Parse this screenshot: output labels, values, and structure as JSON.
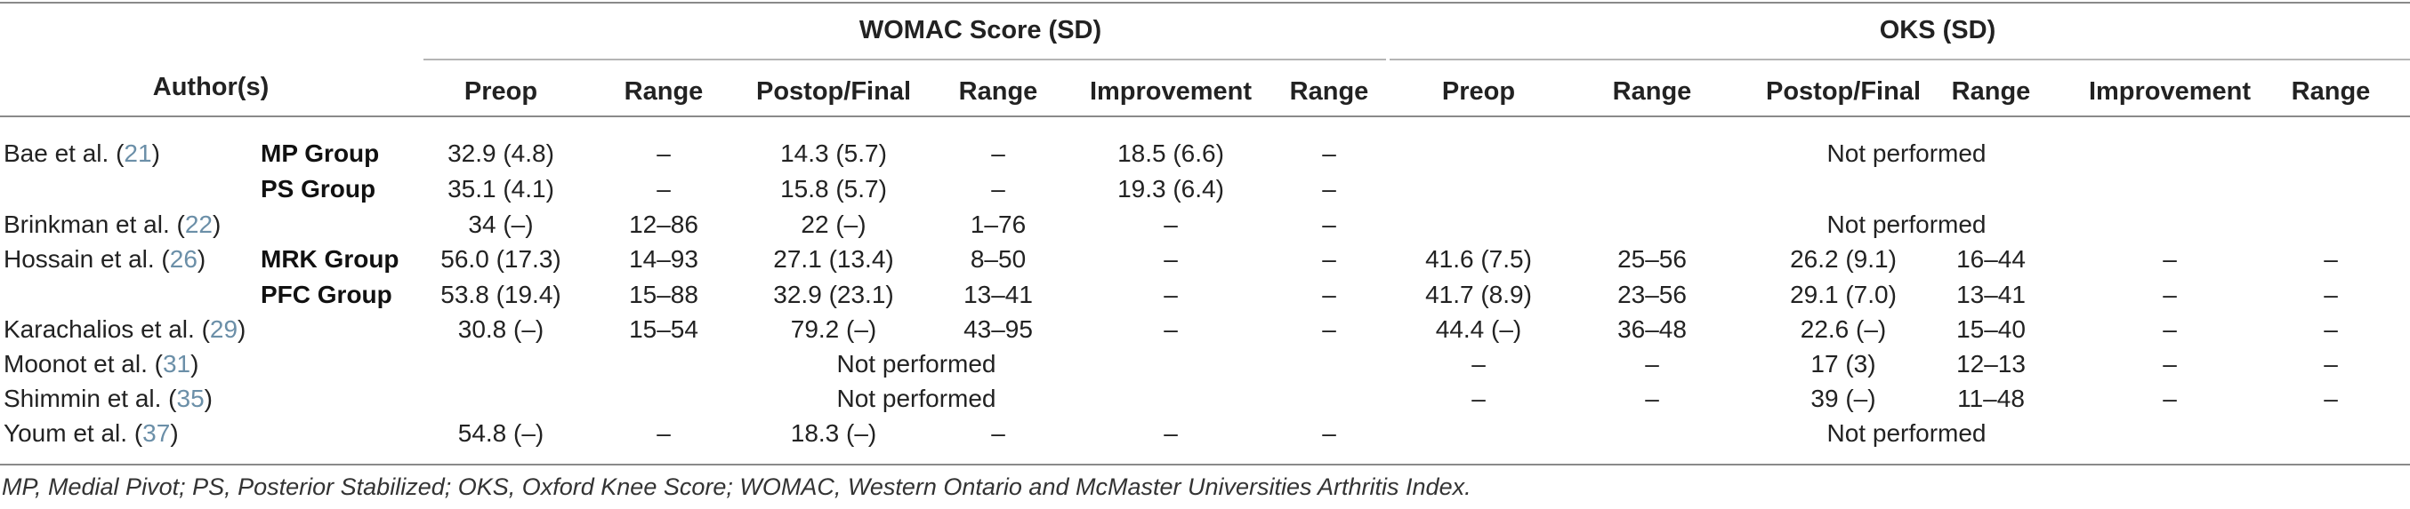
{
  "header": {
    "author": "Author(s)",
    "womac_group": "WOMAC Score (SD)",
    "oks_group": "OKS (SD)",
    "sub": [
      "Preop",
      "Range",
      "Postop/Final",
      "Range",
      "Improvement",
      "Range",
      "Preop",
      "Range",
      "Postop/Final",
      "Range",
      "Improvement",
      "Range"
    ]
  },
  "rows": [
    {
      "author": "Bae et al. (",
      "ref": "21",
      "close": ")",
      "group": "MP Group",
      "w": [
        "32.9 (4.8)",
        "–",
        "14.3 (5.7)",
        "–",
        "18.5 (6.6)",
        "–"
      ],
      "oks_span": "Not performed"
    },
    {
      "author": "",
      "ref": "",
      "close": "",
      "group": "PS Group",
      "w": [
        "35.1 (4.1)",
        "–",
        "15.8 (5.7)",
        "–",
        "19.3 (6.4)",
        "–"
      ]
    },
    {
      "author": "Brinkman et al. (",
      "ref": "22",
      "close": ")",
      "group": "",
      "w": [
        "34 (–)",
        "12–86",
        "22 (–)",
        "1–76",
        "–",
        "–"
      ],
      "oks_span": "Not performed"
    },
    {
      "author": "Hossain et al. (",
      "ref": "26",
      "close": ")",
      "group": "MRK Group",
      "w": [
        "56.0 (17.3)",
        "14–93",
        "27.1 (13.4)",
        "8–50",
        "–",
        "–"
      ],
      "o": [
        "41.6 (7.5)",
        "25–56",
        "26.2 (9.1)",
        "16–44",
        "–",
        "–"
      ]
    },
    {
      "author": "",
      "ref": "",
      "close": "",
      "group": "PFC Group",
      "w": [
        "53.8 (19.4)",
        "15–88",
        "32.9 (23.1)",
        "13–41",
        "–",
        "–"
      ],
      "o": [
        "41.7 (8.9)",
        "23–56",
        "29.1 (7.0)",
        "13–41",
        "–",
        "–"
      ]
    },
    {
      "author": "Karachalios et al. (",
      "ref": "29",
      "close": ")",
      "group": "",
      "w": [
        "30.8 (–)",
        "15–54",
        "79.2 (–)",
        "43–95",
        "–",
        "–"
      ],
      "o": [
        "44.4 (–)",
        "36–48",
        "22.6 (–)",
        "15–40",
        "–",
        "–"
      ]
    },
    {
      "author": "Moonot et al. (",
      "ref": "31",
      "close": ")",
      "group": "",
      "w_span": "Not performed",
      "o": [
        "–",
        "–",
        "17 (3)",
        "12–13",
        "–",
        "–"
      ]
    },
    {
      "author": "Shimmin et al. (",
      "ref": "35",
      "close": ")",
      "group": "",
      "w_span": "Not performed",
      "o": [
        "–",
        "–",
        "39 (–)",
        "11–48",
        "–",
        "–"
      ]
    },
    {
      "author": "Youm et al. (",
      "ref": "37",
      "close": ")",
      "group": "",
      "w": [
        "54.8 (–)",
        "–",
        "18.3 (–)",
        "–",
        "–",
        "–"
      ],
      "oks_span": "Not performed"
    }
  ],
  "footnote": "MP, Medial Pivot; PS, Posterior Stabilized; OKS, Oxford Knee Score; WOMAC, Western Ontario and McMaster Universities Arthritis Index."
}
